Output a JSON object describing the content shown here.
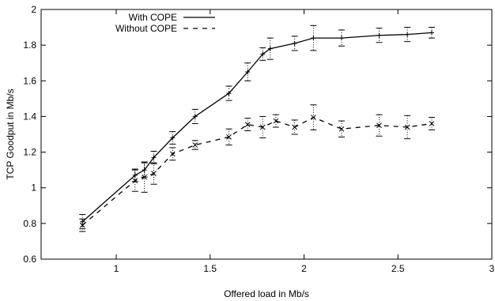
{
  "chart_data": {
    "type": "line",
    "title": "",
    "xlabel": "Offered load in Mb/s",
    "ylabel": "TCP Goodput in Mb/s",
    "xlim": [
      0.6,
      3.0
    ],
    "ylim": [
      0.6,
      2.0
    ],
    "xticks": [
      "1",
      "1.5",
      "2",
      "2.5",
      "3"
    ],
    "yticks": [
      "0.6",
      "0.8",
      "1",
      "1.2",
      "1.4",
      "1.6",
      "1.8",
      "2"
    ],
    "legend_position": "top-left",
    "grid": false,
    "series": [
      {
        "name": "With COPE",
        "style": "solid",
        "color": "#000000",
        "marker": "+",
        "x": [
          0.82,
          1.1,
          1.15,
          1.2,
          1.3,
          1.42,
          1.6,
          1.7,
          1.78,
          1.82,
          1.95,
          2.05,
          2.2,
          2.4,
          2.55,
          2.68
        ],
        "y": [
          0.81,
          1.07,
          1.1,
          1.17,
          1.28,
          1.4,
          1.53,
          1.65,
          1.75,
          1.78,
          1.81,
          1.84,
          1.84,
          1.855,
          1.86,
          1.87
        ],
        "error": [
          0.04,
          0.035,
          0.04,
          0.035,
          0.035,
          0.04,
          0.04,
          0.05,
          0.035,
          0.06,
          0.04,
          0.07,
          0.045,
          0.04,
          0.04,
          0.03
        ]
      },
      {
        "name": "Without COPE",
        "style": "dashed",
        "color": "#000000",
        "marker": "x",
        "x": [
          0.82,
          1.1,
          1.15,
          1.2,
          1.3,
          1.42,
          1.6,
          1.7,
          1.78,
          1.85,
          1.95,
          2.05,
          2.2,
          2.4,
          2.55,
          2.68
        ],
        "y": [
          0.79,
          1.04,
          1.06,
          1.08,
          1.19,
          1.24,
          1.285,
          1.355,
          1.34,
          1.375,
          1.34,
          1.395,
          1.33,
          1.35,
          1.34,
          1.36
        ],
        "error": [
          0.035,
          0.06,
          0.085,
          0.06,
          0.035,
          0.025,
          0.045,
          0.035,
          0.06,
          0.035,
          0.04,
          0.07,
          0.045,
          0.06,
          0.065,
          0.035
        ]
      }
    ]
  }
}
